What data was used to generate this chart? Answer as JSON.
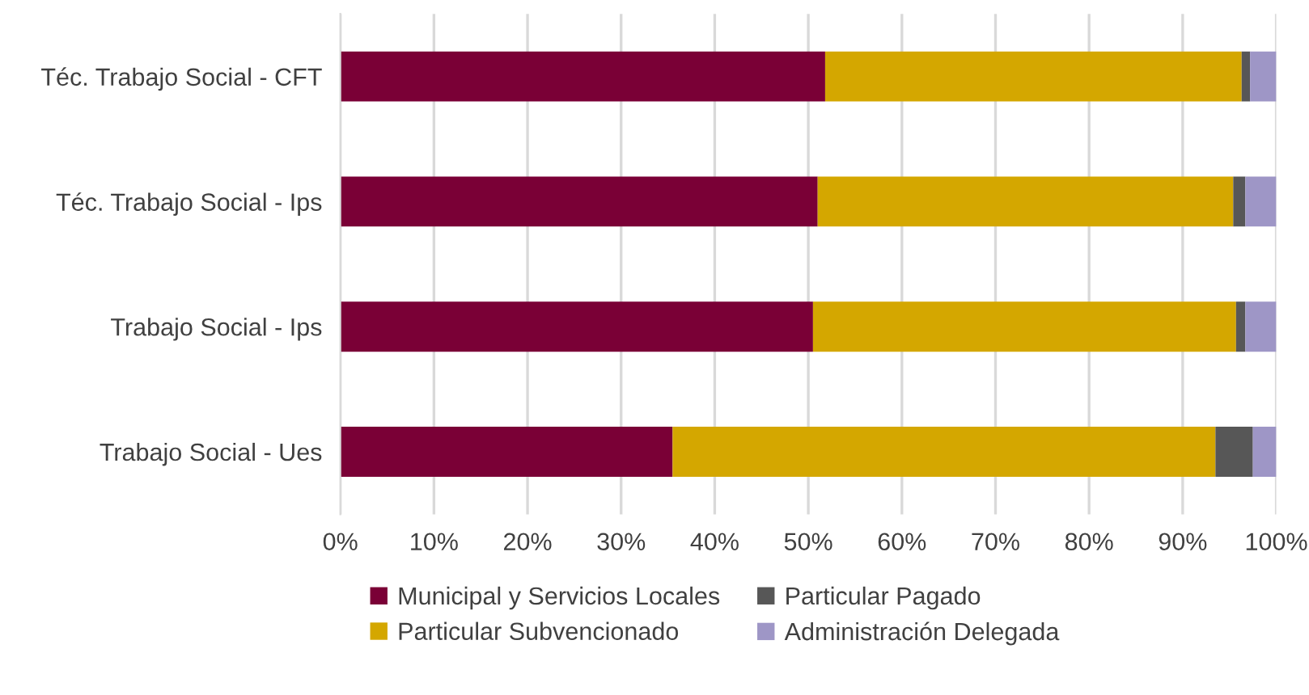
{
  "chart_data": {
    "type": "bar",
    "orientation": "horizontal",
    "stacked": true,
    "categories": [
      "Téc. Trabajo Social - CFT",
      "Téc. Trabajo Social - Ips",
      "Trabajo Social - Ips",
      "Trabajo Social - Ues"
    ],
    "series": [
      {
        "name": "Municipal y Servicios Locales",
        "color": "#7a0036",
        "values": [
          51.8,
          51.0,
          50.5,
          35.5
        ]
      },
      {
        "name": "Particular Subvencionado",
        "color": "#d4a700",
        "values": [
          44.5,
          44.4,
          45.2,
          58.0
        ]
      },
      {
        "name": "Particular Pagado",
        "color": "#575757",
        "values": [
          0.9,
          1.3,
          1.0,
          4.0
        ]
      },
      {
        "name": "Administración Delegada",
        "color": "#9e96c6",
        "values": [
          2.8,
          3.3,
          3.3,
          2.5
        ]
      }
    ],
    "xlim": [
      0,
      100
    ],
    "xticks": [
      {
        "value": 0,
        "label": "0%"
      },
      {
        "value": 10,
        "label": "10%"
      },
      {
        "value": 20,
        "label": "20%"
      },
      {
        "value": 30,
        "label": "30%"
      },
      {
        "value": 40,
        "label": "40%"
      },
      {
        "value": 50,
        "label": "50%"
      },
      {
        "value": 60,
        "label": "60%"
      },
      {
        "value": 70,
        "label": "70%"
      },
      {
        "value": 80,
        "label": "80%"
      },
      {
        "value": 90,
        "label": "90%"
      },
      {
        "value": 100,
        "label": "100%"
      }
    ],
    "grid": "x",
    "legend": "bottom"
  }
}
